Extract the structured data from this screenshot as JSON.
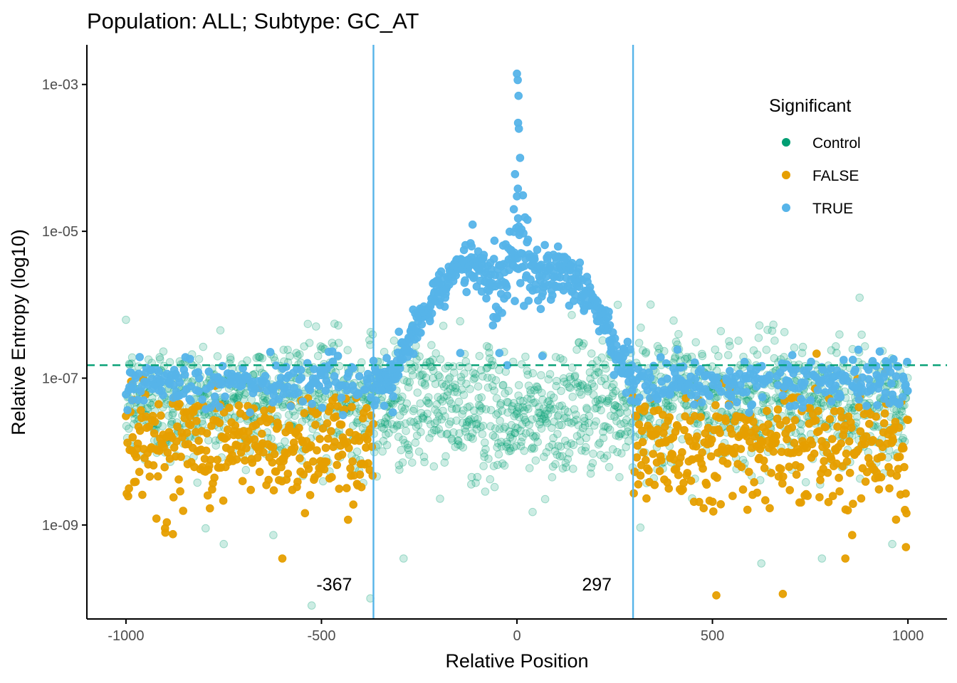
{
  "chart_data": {
    "type": "scatter",
    "title": "Population: ALL; Subtype: GC_AT",
    "xlabel": "Relative Position",
    "ylabel": "Relative Entropy (log10)",
    "x_ticks": [
      -1000,
      -500,
      0,
      500,
      1000
    ],
    "x_tick_labels": [
      "-1000",
      "-500",
      "0",
      "500",
      "1000"
    ],
    "y_ticks": [
      1e-09,
      1e-07,
      1e-05,
      0.001
    ],
    "y_tick_labels": [
      "1e-09",
      "1e-07",
      "1e-05",
      "1e-03"
    ],
    "xlim": [
      -1100,
      1100
    ],
    "ylim_log10": [
      -10.28,
      -2.46
    ],
    "y_scale": "log10",
    "grid": false,
    "legend": {
      "title": "Significant",
      "position": "top-right",
      "entries": [
        {
          "label": "Control",
          "color": "#009E73"
        },
        {
          "label": "FALSE",
          "color": "#E69F00"
        },
        {
          "label": "TRUE",
          "color": "#56B4E9"
        }
      ]
    },
    "reference_lines": {
      "horizontal_dashed": {
        "y": 1.5e-07,
        "color": "#009E73"
      },
      "vertical": [
        {
          "x": -367,
          "label": "-367",
          "color": "#56B4E9"
        },
        {
          "x": 297,
          "label": "297",
          "color": "#56B4E9"
        }
      ]
    },
    "series": [
      {
        "name": "Control",
        "color": "#009E73",
        "opacity": 0.2,
        "note": "approx. one point per position from -1000 to 1000",
        "profile_log10": [
          {
            "x": -1000,
            "center": -7.35,
            "spread": 0.55
          },
          {
            "x": -300,
            "center": -7.3,
            "spread": 0.6
          },
          {
            "x": 0,
            "center": -7.55,
            "spread": 0.55
          },
          {
            "x": 300,
            "center": -7.3,
            "spread": 0.6
          },
          {
            "x": 1000,
            "center": -7.35,
            "spread": 0.55
          }
        ],
        "outliers": [
          {
            "x": -525,
            "y": 8e-11
          },
          {
            "x": -375,
            "y": 1e-10
          },
          {
            "x": -290,
            "y": 3.5e-10
          },
          {
            "x": -750,
            "y": 5.5e-10
          },
          {
            "x": 625,
            "y": 3e-10
          },
          {
            "x": 780,
            "y": 3.5e-10
          },
          {
            "x": 960,
            "y": 5.5e-10
          },
          {
            "x": 40,
            "y": 1.5e-09
          }
        ]
      },
      {
        "name": "FALSE",
        "color": "#E69F00",
        "opacity": 0.95,
        "note": "points at |x| outside the significant window",
        "ranges": [
          [
            -1000,
            -367
          ],
          [
            297,
            1000
          ]
        ],
        "profile_log10": [
          {
            "x": -1000,
            "center": -7.9,
            "spread": 0.55
          },
          {
            "x": 1000,
            "center": -7.9,
            "spread": 0.55
          }
        ],
        "outliers": [
          {
            "x": -600,
            "y": 3.5e-10
          },
          {
            "x": 510,
            "y": 1.1e-10
          },
          {
            "x": 680,
            "y": 1.15e-10
          },
          {
            "x": 840,
            "y": 3.5e-10
          },
          {
            "x": 995,
            "y": 5e-10
          },
          {
            "x": -900,
            "y": 9e-10
          },
          {
            "x": -880,
            "y": 7.5e-10
          }
        ]
      },
      {
        "name": "TRUE",
        "color": "#56B4E9",
        "opacity": 0.95,
        "profile_log10": [
          {
            "x": -1000,
            "center": -7.05,
            "spread": 0.35
          },
          {
            "x": -367,
            "center": -7.05,
            "spread": 0.3
          },
          {
            "x": -320,
            "center": -7.0,
            "spread": 0.3
          },
          {
            "x": -280,
            "center": -6.5,
            "spread": 0.25
          },
          {
            "x": -250,
            "center": -6.2,
            "spread": 0.25
          },
          {
            "x": -200,
            "center": -5.85,
            "spread": 0.3
          },
          {
            "x": -150,
            "center": -5.4,
            "spread": 0.2
          },
          {
            "x": -100,
            "center": -5.5,
            "spread": 0.3
          },
          {
            "x": -50,
            "center": -5.8,
            "spread": 0.5
          },
          {
            "x": 0,
            "center": -5.2,
            "spread": 0.6
          },
          {
            "x": 50,
            "center": -5.6,
            "spread": 0.4
          },
          {
            "x": 100,
            "center": -5.5,
            "spread": 0.3
          },
          {
            "x": 150,
            "center": -5.7,
            "spread": 0.3
          },
          {
            "x": 200,
            "center": -6.0,
            "spread": 0.2
          },
          {
            "x": 250,
            "center": -6.6,
            "spread": 0.25
          },
          {
            "x": 297,
            "center": -7.05,
            "spread": 0.3
          },
          {
            "x": 1000,
            "center": -7.05,
            "spread": 0.35
          }
        ],
        "peak_points": [
          {
            "x": 0,
            "y": 0.0014
          },
          {
            "x": 2,
            "y": 0.00115
          },
          {
            "x": 4,
            "y": 0.0007
          },
          {
            "x": 3,
            "y": 0.0003
          },
          {
            "x": 5,
            "y": 0.00025
          },
          {
            "x": 8,
            "y": 0.0001
          },
          {
            "x": -5,
            "y": 6e-05
          },
          {
            "x": 0,
            "y": 3e-05
          },
          {
            "x": -8,
            "y": 2e-05
          },
          {
            "x": 3,
            "y": 1.5e-05
          }
        ],
        "outliers": [
          {
            "x": -145,
            "y": 2.2e-07
          },
          {
            "x": -45,
            "y": 2.2e-07
          },
          {
            "x": -25,
            "y": 1.5e-07
          },
          {
            "x": 65,
            "y": 2e-07
          }
        ]
      }
    ]
  }
}
